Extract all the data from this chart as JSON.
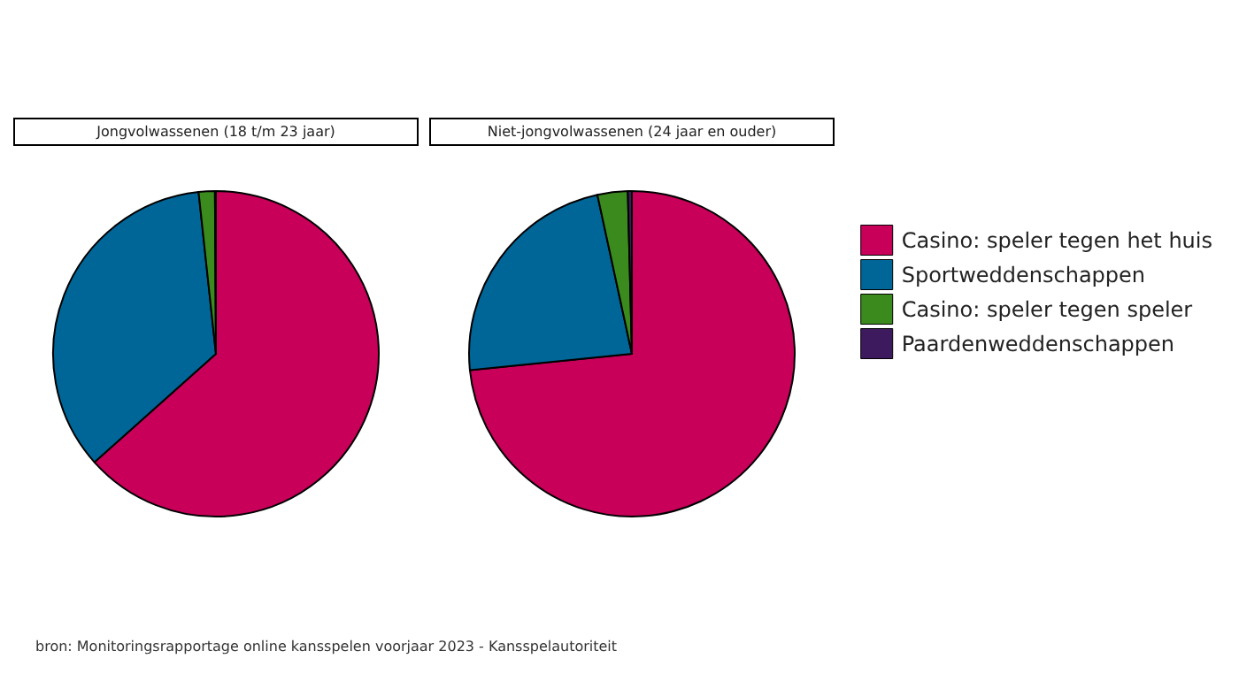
{
  "chart_data": {
    "type": "pie",
    "categories": [
      "Casino: speler tegen het huis",
      "Sportweddenschappen",
      "Casino: speler tegen speler",
      "Paardenweddenschappen"
    ],
    "colors": [
      "#c8005a",
      "#006698",
      "#3a8a1e",
      "#3d1a5e"
    ],
    "legend": "right",
    "series": [
      {
        "name": "Jongvolwassenen (18 t/m 23 jaar)",
        "values": [
          63.4,
          34.9,
          1.6,
          0.1
        ]
      },
      {
        "name": "Niet-jongvolwassenen (24 jaar en ouder)",
        "values": [
          73.4,
          23.2,
          3.0,
          0.4
        ]
      }
    ],
    "annotations": [
      "bron: Monitoringsrapportage online kansspelen voorjaar 2023 - Kansspelautoriteit"
    ]
  }
}
